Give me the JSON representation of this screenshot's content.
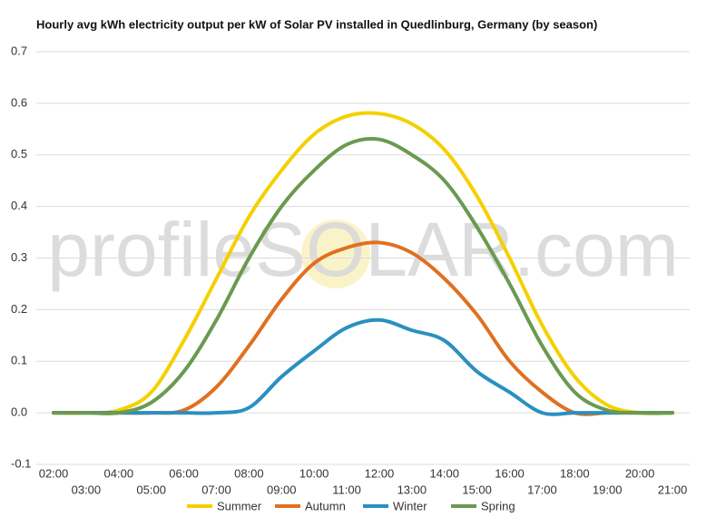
{
  "chart_data": {
    "type": "line",
    "title": "Hourly avg kWh electricity output per kW of Solar PV installed in Quedlinburg, Germany (by season)",
    "watermark": "profileSOLAR.com",
    "categories": [
      "02:00",
      "03:00",
      "04:00",
      "05:00",
      "06:00",
      "07:00",
      "08:00",
      "09:00",
      "10:00",
      "11:00",
      "12:00",
      "13:00",
      "14:00",
      "15:00",
      "16:00",
      "17:00",
      "18:00",
      "19:00",
      "20:00",
      "21:00"
    ],
    "series": [
      {
        "name": "Summer",
        "color": "#f5d000",
        "values": [
          0,
          0,
          0.005,
          0.04,
          0.14,
          0.26,
          0.38,
          0.47,
          0.54,
          0.575,
          0.58,
          0.56,
          0.51,
          0.42,
          0.3,
          0.17,
          0.07,
          0.015,
          0,
          0
        ]
      },
      {
        "name": "Autumn",
        "color": "#e07020",
        "values": [
          0,
          0,
          0,
          0,
          0.005,
          0.05,
          0.13,
          0.22,
          0.29,
          0.32,
          0.33,
          0.31,
          0.26,
          0.19,
          0.1,
          0.04,
          0,
          0,
          0,
          0
        ]
      },
      {
        "name": "Winter",
        "color": "#2a90c0",
        "values": [
          0,
          0,
          0,
          0,
          0,
          0,
          0.01,
          0.07,
          0.12,
          0.165,
          0.18,
          0.16,
          0.14,
          0.08,
          0.04,
          0,
          0,
          0,
          0,
          0
        ]
      },
      {
        "name": "Spring",
        "color": "#6a9a50",
        "values": [
          0,
          0,
          0,
          0.02,
          0.08,
          0.18,
          0.3,
          0.4,
          0.47,
          0.52,
          0.53,
          0.5,
          0.45,
          0.36,
          0.25,
          0.13,
          0.04,
          0.005,
          0,
          0
        ]
      }
    ],
    "ylim": [
      -0.1,
      0.7
    ],
    "yticks": [
      -0.1,
      {
        "value": 0,
        "label": "0.0"
      },
      0.1,
      0.2,
      0.3,
      0.4,
      0.5,
      0.6,
      0.7
    ],
    "grid": true,
    "legend": "bottom"
  }
}
